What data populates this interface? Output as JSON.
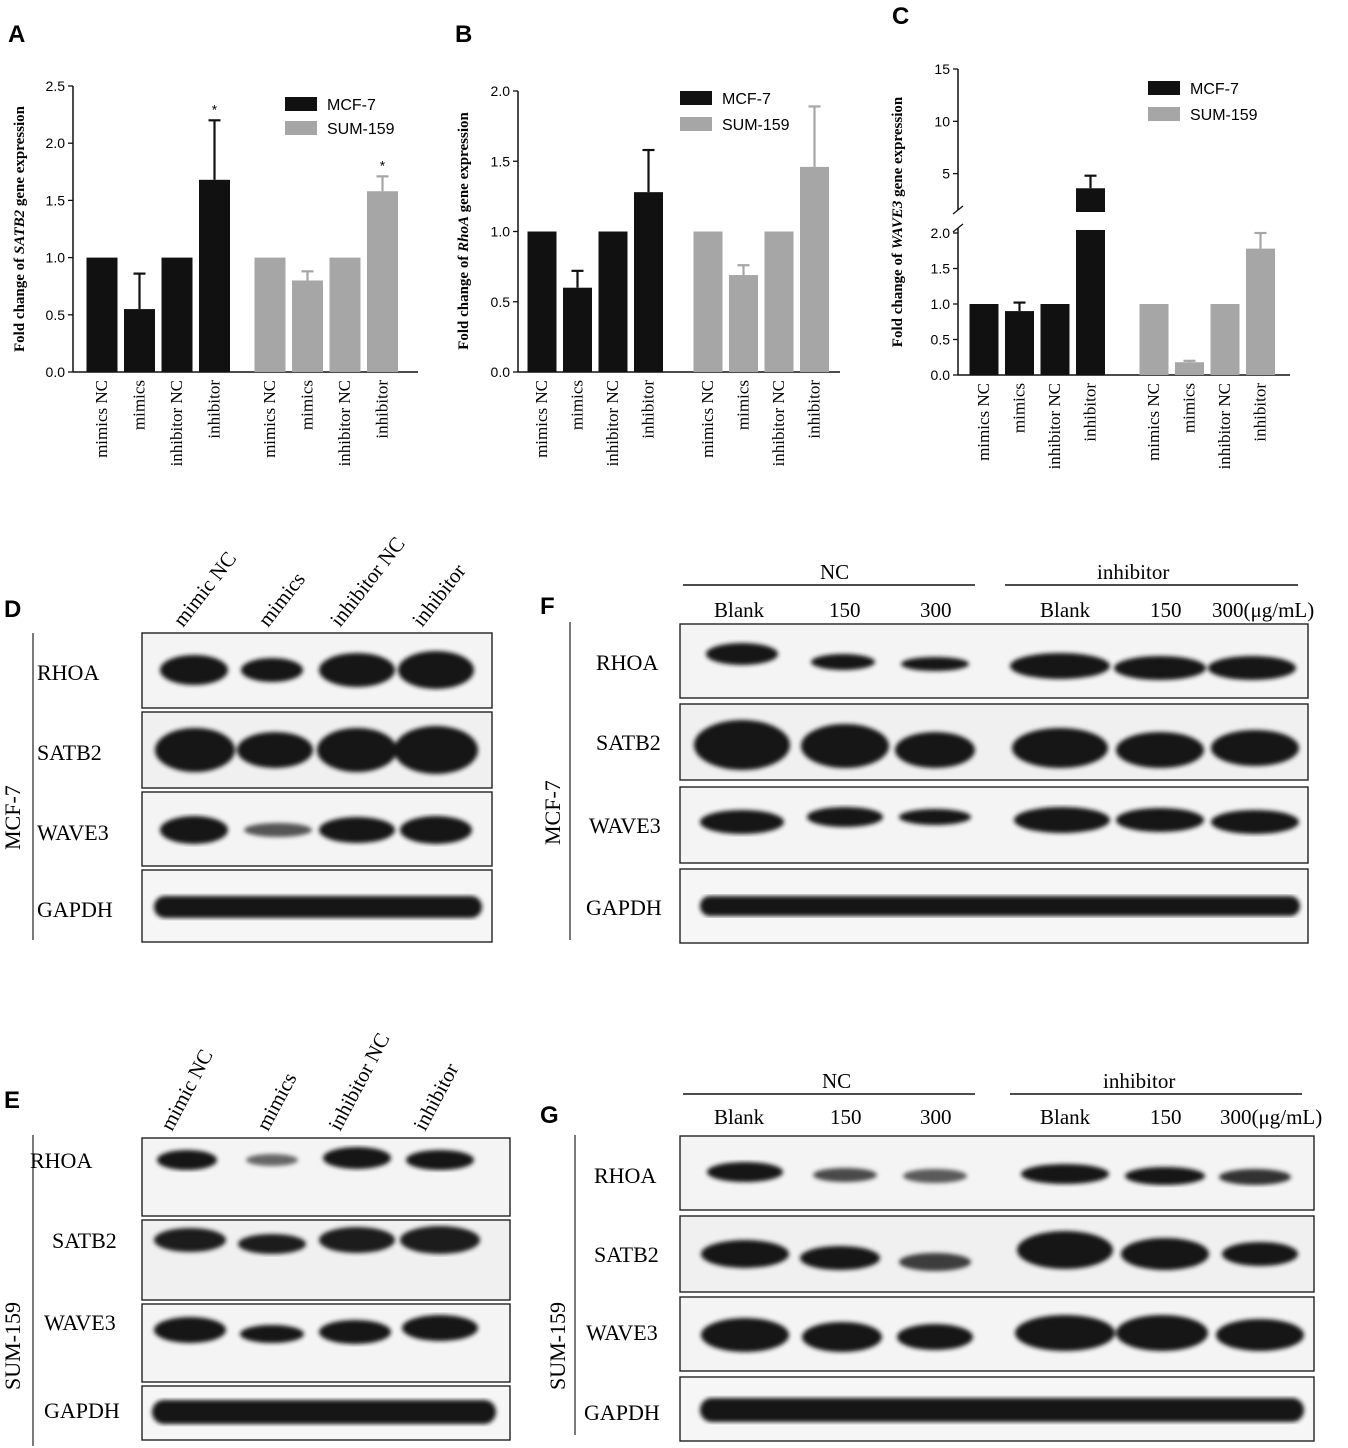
{
  "chart_data": [
    {
      "panel": "A",
      "type": "bar",
      "ylabel_prefix": "Fold change of ",
      "ylabel_gene": "SATB2",
      "ylabel_suffix": " gene expression",
      "ylim": [
        0,
        2.5
      ],
      "yticks": [
        "0.0",
        "0.5",
        "1.0",
        "1.5",
        "2.0",
        "2.5"
      ],
      "categories": [
        "mimics NC",
        "mimics",
        "inhibitor NC",
        "inhibitor"
      ],
      "series": [
        {
          "name": "MCF-7",
          "values": [
            1.0,
            0.55,
            1.0,
            1.68
          ],
          "err": [
            0,
            0.31,
            0,
            0.52
          ],
          "sig": [
            "",
            "",
            "",
            "*"
          ]
        },
        {
          "name": "SUM-159",
          "values": [
            1.0,
            0.8,
            1.0,
            1.58
          ],
          "err": [
            0,
            0.08,
            0,
            0.13
          ],
          "sig": [
            "",
            "",
            "",
            "*"
          ]
        }
      ]
    },
    {
      "panel": "B",
      "type": "bar",
      "ylabel_prefix": "Fold change of ",
      "ylabel_gene": "RhoA",
      "ylabel_suffix": " gene expression",
      "ylim": [
        0,
        2.0
      ],
      "yticks": [
        "0.0",
        "0.5",
        "1.0",
        "1.5",
        "2.0"
      ],
      "categories": [
        "mimics NC",
        "mimics",
        "inhibitor NC",
        "inhibitor"
      ],
      "series": [
        {
          "name": "MCF-7",
          "values": [
            1.0,
            0.6,
            1.0,
            1.28
          ],
          "err": [
            0,
            0.12,
            0,
            0.3
          ]
        },
        {
          "name": "SUM-159",
          "values": [
            1.0,
            0.69,
            1.0,
            1.46
          ],
          "err": [
            0,
            0.07,
            0,
            0.43
          ]
        }
      ]
    },
    {
      "panel": "C",
      "type": "bar",
      "ylabel_prefix": "Fold change of ",
      "ylabel_gene": "WAVE3",
      "ylabel_suffix": " gene expression",
      "axis_break": true,
      "yticks_lower": [
        "0.0",
        "0.5",
        "1.0",
        "1.5",
        "2.0"
      ],
      "yticks_upper": [
        "5",
        "10",
        "15"
      ],
      "categories": [
        "mimics NC",
        "mimics",
        "inhibitor NC",
        "inhibitor"
      ],
      "series": [
        {
          "name": "MCF-7",
          "values": [
            1.0,
            0.9,
            1.0,
            3.6
          ],
          "err": [
            0,
            0.12,
            0,
            1.2
          ]
        },
        {
          "name": "SUM-159",
          "values": [
            1.0,
            0.18,
            1.0,
            1.78
          ],
          "err": [
            0,
            0.02,
            0,
            0.22
          ]
        }
      ]
    }
  ],
  "panels": {
    "A": "A",
    "B": "B",
    "C": "C",
    "D": "D",
    "E": "E",
    "F": "F",
    "G": "G"
  },
  "blots": {
    "lanes_DE": [
      "mimic NC",
      "mimics",
      "inhibitor NC",
      "inhibitor"
    ],
    "proteins": [
      "RHOA",
      "SATB2",
      "WAVE3",
      "GAPDH"
    ],
    "cell_mcf7": "MCF-7",
    "cell_sum159": "SUM-159",
    "group_nc": "NC",
    "group_inhibitor": "inhibitor",
    "lanes_FG": [
      "Blank",
      "150",
      "300",
      "Blank",
      "150",
      "300(μg/mL)"
    ]
  }
}
